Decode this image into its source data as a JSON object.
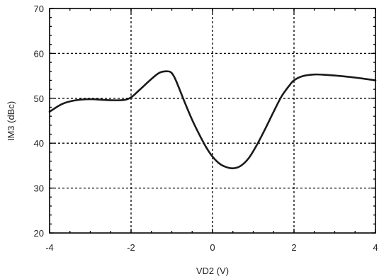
{
  "chart_data": {
    "type": "line",
    "xlabel": "VD2 (V)",
    "ylabel": "IM3 (dBc)",
    "xlim": [
      -4,
      4
    ],
    "ylim": [
      20,
      70
    ],
    "x_ticks": [
      "-4",
      "-2",
      "0",
      "2",
      "4"
    ],
    "y_ticks": [
      "20",
      "30",
      "40",
      "50",
      "60",
      "70"
    ],
    "x_tick_values": [
      -4,
      -2,
      0,
      2,
      4
    ],
    "y_tick_values": [
      20,
      30,
      40,
      50,
      60,
      70
    ],
    "grid": true,
    "series": [
      {
        "color": "#1a1a1a",
        "x": [
          -4.0,
          -3.7,
          -3.4,
          -3.0,
          -2.6,
          -2.2,
          -2.0,
          -1.8,
          -1.5,
          -1.3,
          -1.1,
          -1.0,
          -0.9,
          -0.7,
          -0.5,
          -0.3,
          -0.15,
          0.0,
          0.15,
          0.3,
          0.5,
          0.7,
          0.9,
          1.1,
          1.3,
          1.5,
          1.7,
          1.9,
          2.0,
          2.2,
          2.5,
          2.8,
          3.2,
          3.6,
          4.0
        ],
        "y": [
          47.0,
          48.7,
          49.5,
          49.8,
          49.6,
          49.6,
          50.2,
          51.8,
          54.3,
          55.7,
          56.0,
          55.6,
          54.0,
          49.5,
          45.2,
          41.5,
          39.0,
          37.0,
          35.6,
          34.8,
          34.4,
          35.0,
          36.8,
          39.8,
          43.3,
          47.0,
          50.5,
          53.0,
          54.0,
          54.9,
          55.3,
          55.2,
          54.9,
          54.5,
          54.0
        ]
      }
    ]
  }
}
